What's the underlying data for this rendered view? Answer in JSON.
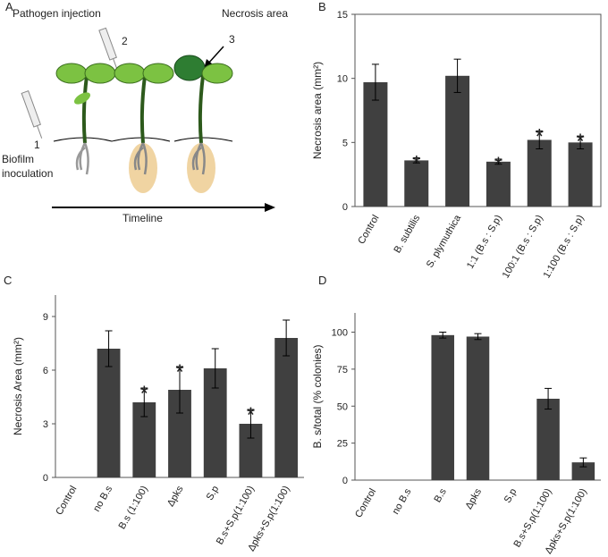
{
  "diagram": {
    "panel_label": "A",
    "labels": [
      "Pathogen injection",
      "2",
      "Necrosis area",
      "3",
      "1",
      "Biofilm inoculation",
      "Timeline"
    ]
  },
  "chart_data": [
    {
      "type": "bar",
      "panel_label": "B",
      "ylabel": "Necrosis area (mm²)",
      "frame": true,
      "categories": [
        "Control",
        "B. subtilis",
        "S. plymuthica",
        "1:1 (B.s : S.p)",
        "100:1 (B.s : S.p)",
        "1:100 (B.s : S.p)"
      ],
      "values": [
        9.7,
        3.6,
        10.2,
        3.5,
        5.2,
        5.0
      ],
      "errors": [
        1.4,
        0.2,
        1.3,
        0.2,
        0.7,
        0.5
      ],
      "markers": [
        null,
        "*",
        null,
        "*",
        "*",
        "*"
      ],
      "color": "#404040",
      "ylim": [
        0,
        15
      ],
      "yticks": [
        0,
        5,
        10,
        15
      ]
    },
    {
      "type": "bar",
      "panel_label": "C",
      "ylabel": "Necrosis Area (mm²)",
      "frame": false,
      "categories": [
        "Control",
        "no B.s",
        "B.s (1:100)",
        "Δpks",
        "S.p",
        "B.s+S.p(1:100)",
        "Δpks+S.p(1:100)"
      ],
      "values": [
        null,
        7.2,
        4.2,
        4.9,
        6.1,
        3.0,
        7.8
      ],
      "errors": [
        null,
        1.0,
        0.8,
        1.3,
        1.1,
        0.8,
        1.0
      ],
      "markers": [
        null,
        null,
        "*",
        "*",
        null,
        "*",
        null
      ],
      "color": "#404040",
      "ylim": [
        0,
        10.2
      ],
      "yticks": [
        0,
        3,
        6,
        9
      ]
    },
    {
      "type": "bar",
      "panel_label": "D",
      "ylabel": "B. s/total (% colonies)",
      "frame": false,
      "categories": [
        "Control",
        "no B.s",
        "B.s",
        "Δpks",
        "S.p",
        "B.s+S.p(1:100)",
        "Δpks+S.p(1:100)"
      ],
      "values": [
        null,
        null,
        98,
        97,
        null,
        55,
        12
      ],
      "errors": [
        null,
        null,
        2,
        2,
        null,
        7,
        3
      ],
      "color": "#404040",
      "ylim": [
        0,
        113
      ],
      "yticks": [
        0,
        25,
        50,
        75,
        100
      ]
    }
  ]
}
